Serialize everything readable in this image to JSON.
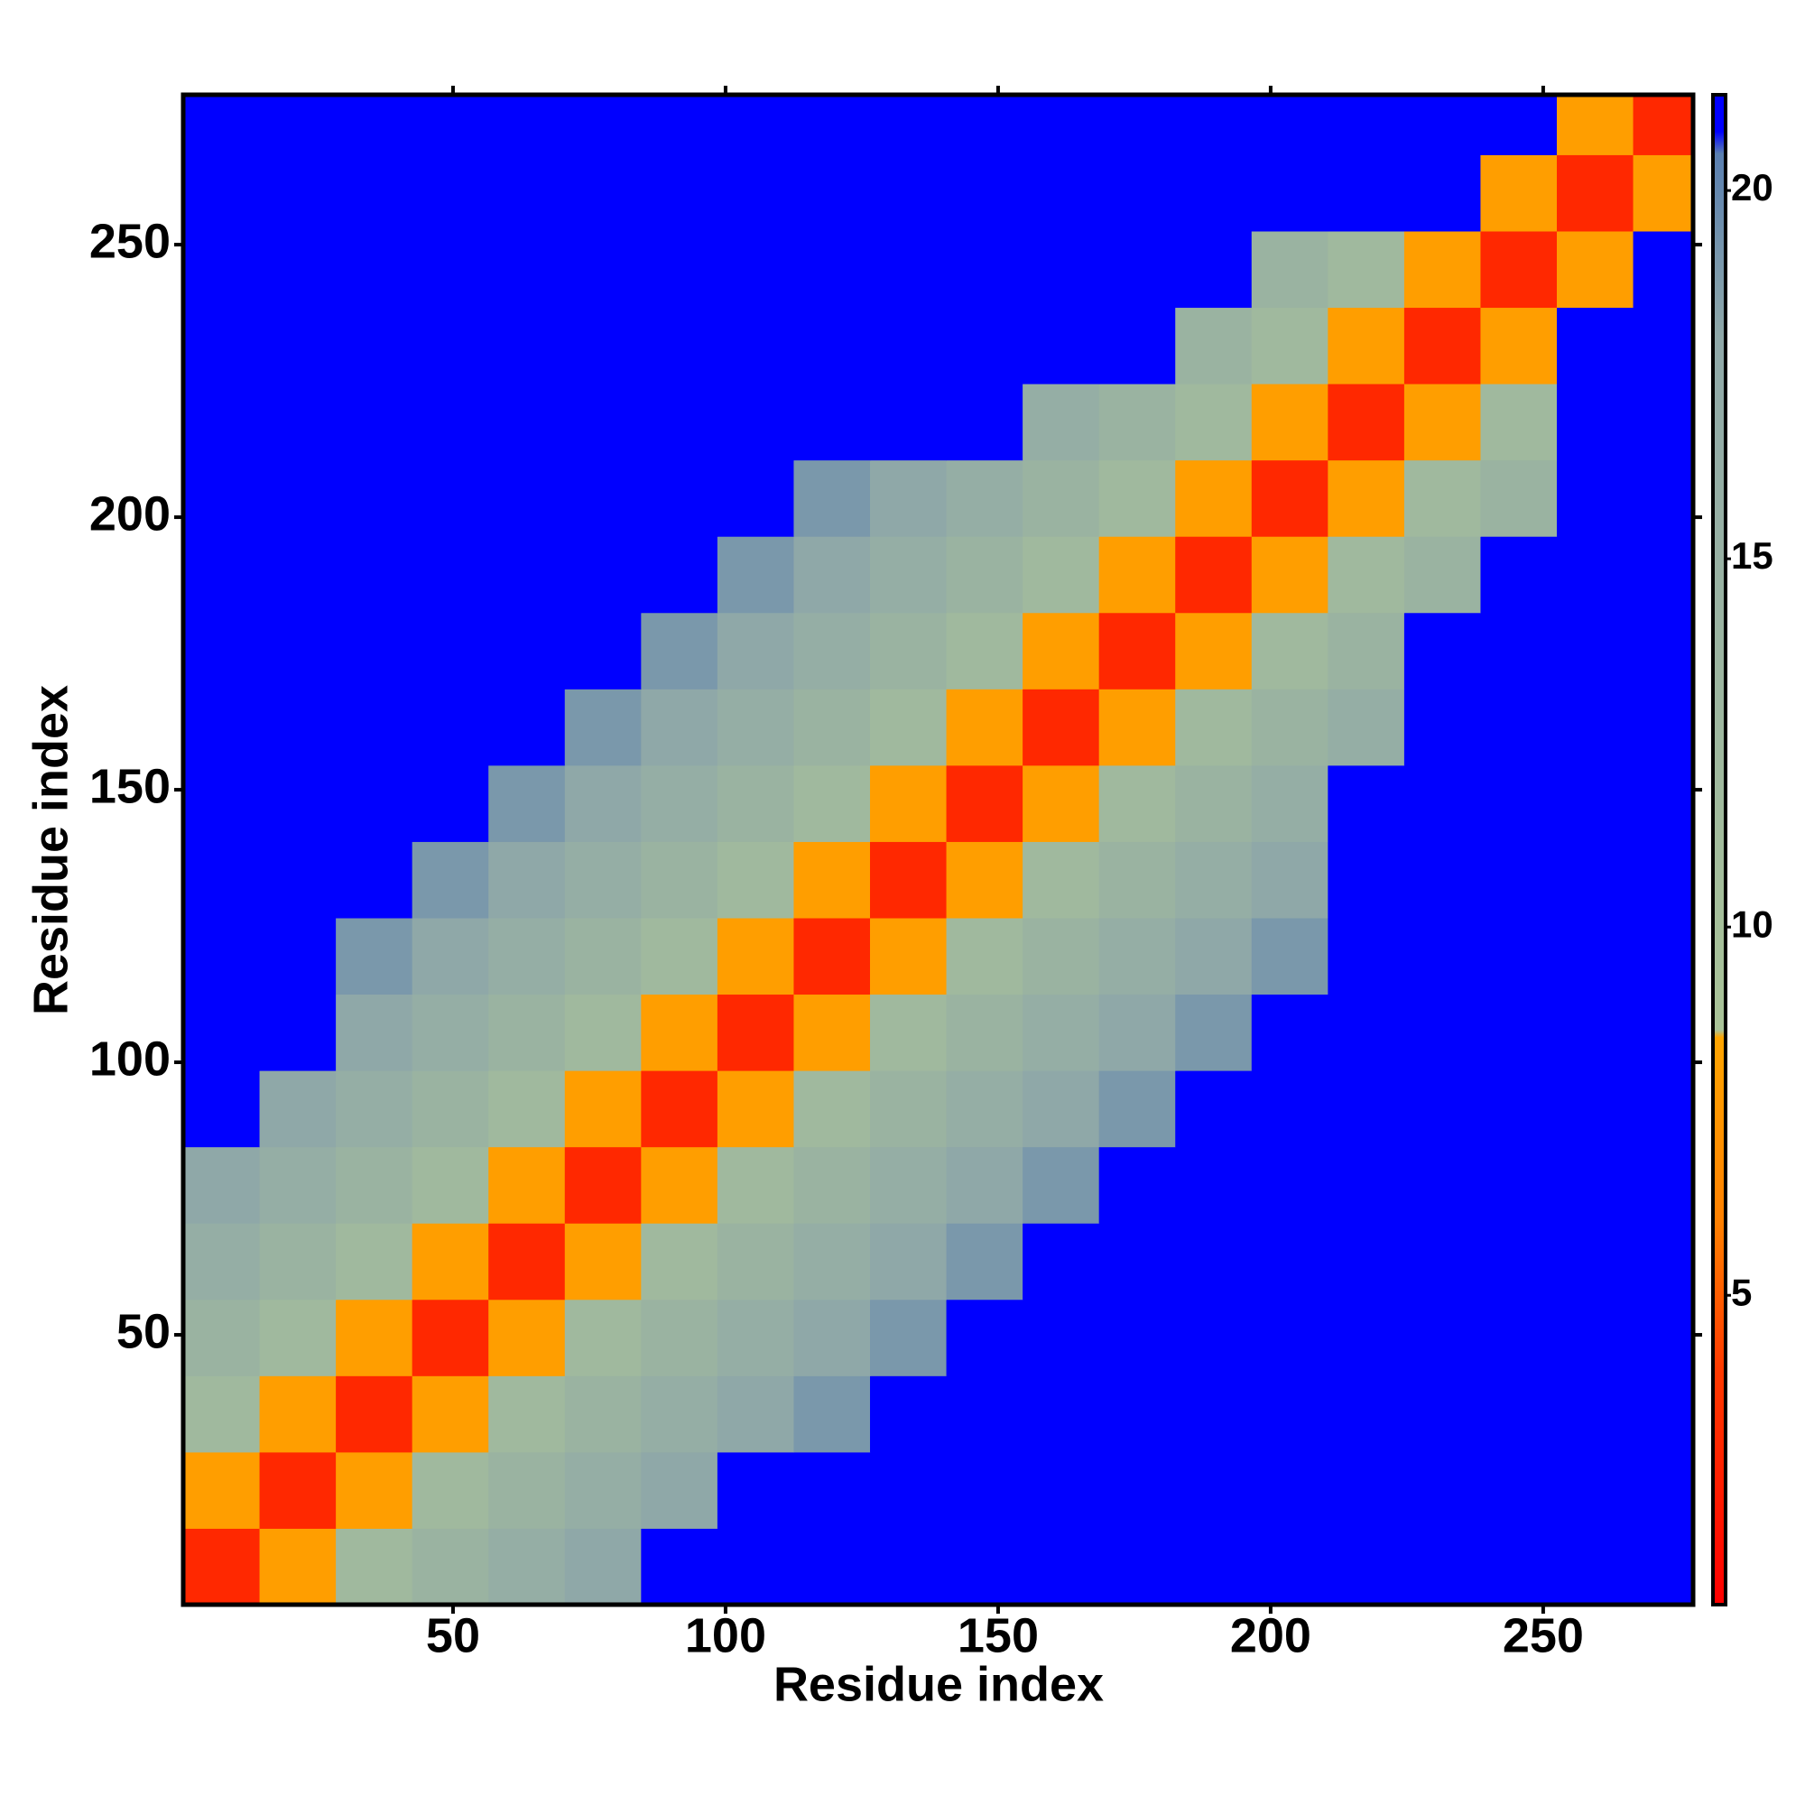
{
  "chart_data": {
    "type": "heatmap",
    "xlabel": "Residue index",
    "ylabel": "Residue index",
    "xlim": [
      0.5,
      277.5
    ],
    "ylim": [
      0.5,
      277.5
    ],
    "xticks": [
      50,
      100,
      150,
      200,
      250
    ],
    "yticks": [
      50,
      100,
      150,
      200,
      250
    ],
    "x_edges": [
      0.5,
      14.5,
      28.5,
      42.5,
      56.5,
      70.5,
      84.5,
      98.5,
      112.5,
      126.5,
      140.5,
      154.5,
      168.5,
      182.5,
      196.5,
      210.5,
      224.5,
      238.5,
      252.5,
      266.5,
      277.5
    ],
    "y_edges": [
      0.5,
      14.5,
      28.5,
      42.5,
      56.5,
      70.5,
      84.5,
      98.5,
      112.5,
      126.5,
      140.5,
      154.5,
      168.5,
      182.5,
      196.5,
      210.5,
      224.5,
      238.5,
      252.5,
      266.5,
      277.5
    ],
    "z": [
      [
        3,
        8,
        12,
        14,
        16,
        18,
        21,
        21,
        21,
        21,
        21,
        21,
        21,
        21,
        21,
        21,
        21,
        21,
        21,
        21
      ],
      [
        8,
        3,
        8,
        12,
        14,
        16,
        18,
        21,
        21,
        21,
        21,
        21,
        21,
        21,
        21,
        21,
        21,
        21,
        21,
        21
      ],
      [
        12,
        8,
        3,
        8,
        12,
        14,
        16,
        18,
        19,
        21,
        21,
        21,
        21,
        21,
        21,
        21,
        21,
        21,
        21,
        21
      ],
      [
        14,
        12,
        8,
        3,
        8,
        12,
        14,
        16,
        18,
        19,
        21,
        21,
        21,
        21,
        21,
        21,
        21,
        21,
        21,
        21
      ],
      [
        16,
        14,
        12,
        8,
        3,
        8,
        12,
        14,
        16,
        18,
        19,
        21,
        21,
        21,
        21,
        21,
        21,
        21,
        21,
        21
      ],
      [
        18,
        16,
        14,
        12,
        8,
        3,
        8,
        12,
        14,
        16,
        18,
        19,
        21,
        21,
        21,
        21,
        21,
        21,
        21,
        21
      ],
      [
        21,
        18,
        16,
        14,
        12,
        8,
        3,
        8,
        12,
        14,
        16,
        18,
        19,
        21,
        21,
        21,
        21,
        21,
        21,
        21
      ],
      [
        21,
        21,
        18,
        16,
        14,
        12,
        8,
        3,
        8,
        12,
        14,
        16,
        18,
        19,
        21,
        21,
        21,
        21,
        21,
        21
      ],
      [
        21,
        21,
        19,
        18,
        16,
        14,
        12,
        8,
        3,
        8,
        12,
        14,
        16,
        18,
        19,
        21,
        21,
        21,
        21,
        21
      ],
      [
        21,
        21,
        21,
        19,
        18,
        16,
        14,
        12,
        8,
        3,
        8,
        12,
        14,
        16,
        18,
        21,
        21,
        21,
        21,
        21
      ],
      [
        21,
        21,
        21,
        21,
        19,
        18,
        16,
        14,
        12,
        8,
        3,
        8,
        12,
        14,
        16,
        21,
        21,
        21,
        21,
        21
      ],
      [
        21,
        21,
        21,
        21,
        21,
        19,
        18,
        16,
        14,
        12,
        8,
        3,
        8,
        12,
        14,
        16,
        21,
        21,
        21,
        21
      ],
      [
        21,
        21,
        21,
        21,
        21,
        21,
        19,
        18,
        16,
        14,
        12,
        8,
        3,
        8,
        12,
        14,
        21,
        21,
        21,
        21
      ],
      [
        21,
        21,
        21,
        21,
        21,
        21,
        21,
        19,
        18,
        16,
        14,
        12,
        8,
        3,
        8,
        12,
        14,
        21,
        21,
        21
      ],
      [
        21,
        21,
        21,
        21,
        21,
        21,
        21,
        21,
        19,
        18,
        16,
        14,
        12,
        8,
        3,
        8,
        12,
        14,
        21,
        21
      ],
      [
        21,
        21,
        21,
        21,
        21,
        21,
        21,
        21,
        21,
        21,
        21,
        16,
        14,
        12,
        8,
        3,
        8,
        12,
        21,
        21
      ],
      [
        21,
        21,
        21,
        21,
        21,
        21,
        21,
        21,
        21,
        21,
        21,
        21,
        21,
        14,
        12,
        8,
        3,
        8,
        21,
        21
      ],
      [
        21,
        21,
        21,
        21,
        21,
        21,
        21,
        21,
        21,
        21,
        21,
        21,
        21,
        21,
        14,
        12,
        8,
        3,
        8,
        21
      ],
      [
        21,
        21,
        21,
        21,
        21,
        21,
        21,
        21,
        21,
        21,
        21,
        21,
        21,
        21,
        21,
        21,
        21,
        8,
        3,
        8
      ],
      [
        21,
        21,
        21,
        21,
        21,
        21,
        21,
        21,
        21,
        21,
        21,
        21,
        21,
        21,
        21,
        21,
        21,
        21,
        8,
        3
      ]
    ],
    "zlim": [
      0.8,
      21.3
    ],
    "colorbar_ticks": [
      5,
      10,
      15,
      20
    ],
    "colorscale": [
      [
        0.8,
        "#ff0000"
      ],
      [
        4,
        "#ff3a00"
      ],
      [
        6,
        "#ff8000"
      ],
      [
        8.5,
        "#ffa500"
      ],
      [
        8.6,
        "#a9c398"
      ],
      [
        18,
        "#8fa8a8"
      ],
      [
        20.5,
        "#5a7fb0"
      ],
      [
        20.8,
        "#0000ff"
      ],
      [
        21.3,
        "#0000ff"
      ]
    ]
  }
}
